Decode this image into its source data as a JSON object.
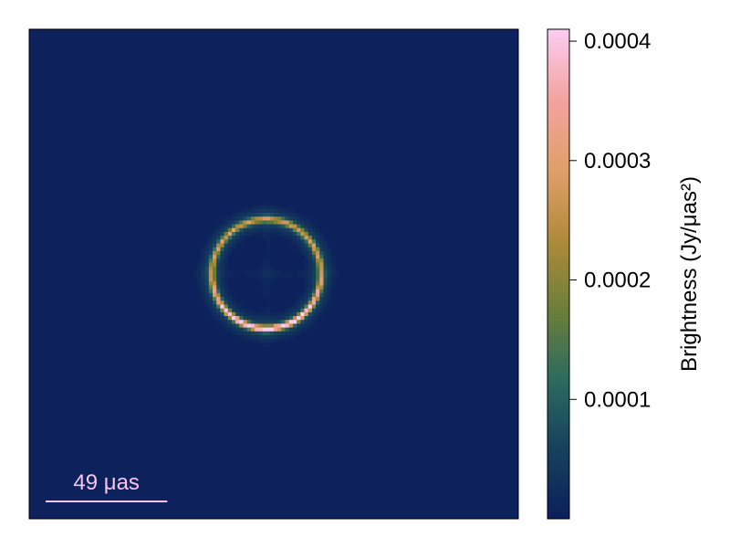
{
  "chart_data": {
    "type": "heatmap",
    "description_text": "",
    "image": {
      "field_of_view_uas": 197,
      "pixels": 128,
      "background_brightness": 3e-06,
      "ring": {
        "center_x_fraction": 0.485,
        "center_y_fraction": 0.5,
        "radius_uas": 22,
        "peak_brightness": 0.00041,
        "bright_side": "bottom",
        "halo_brightness": 9e-05
      }
    },
    "scale_bar": {
      "label": "49 μas",
      "length_uas": 49,
      "color": "#f7c4ef"
    },
    "colorbar": {
      "label": "Brightness (Jy/μas²)",
      "min": 0.0,
      "max": 0.00041,
      "ticks": [
        0.0001,
        0.0002,
        0.0003,
        0.0004
      ],
      "tick_labels": [
        "0.0001",
        "0.0002",
        "0.0003",
        "0.0004"
      ],
      "colormap_stops": [
        "#0c1f5c",
        "#16415d",
        "#2d6b5e",
        "#6e7f3a",
        "#b18a3b",
        "#e0a06a",
        "#f3a3a0",
        "#fccdf2"
      ]
    }
  }
}
